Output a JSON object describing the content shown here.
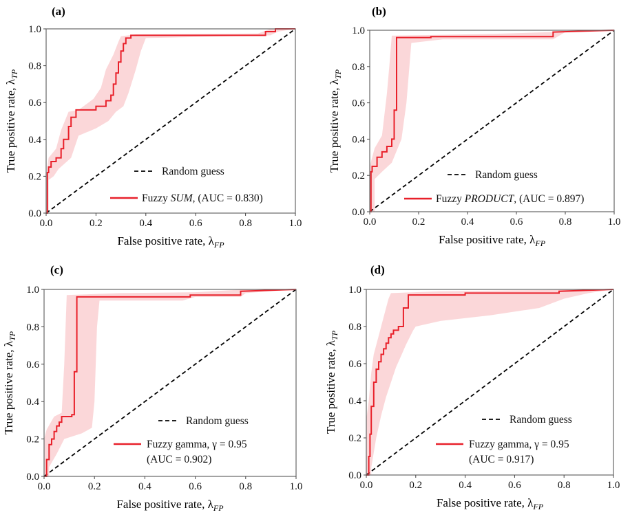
{
  "chart_data": [
    {
      "type": "line",
      "panel_label": "(a)",
      "xlim": [
        0,
        1
      ],
      "ylim": [
        0,
        1
      ],
      "xticks": [
        "0.0",
        "0.2",
        "0.4",
        "0.6",
        "0.8",
        "1.0"
      ],
      "yticks": [
        "0.0",
        "0.2",
        "0.4",
        "0.6",
        "0.8",
        "1.0"
      ],
      "xlabel": {
        "main": "False positive rate, λ",
        "sub": "FP"
      },
      "ylabel": {
        "main": "True positive rate, λ",
        "sub": "TP"
      },
      "legend_position": "lower-right",
      "series": [
        {
          "name": "Random guess",
          "style": "dashed",
          "color": "#000000",
          "x": [
            0,
            1
          ],
          "y": [
            0,
            1
          ]
        },
        {
          "name_parts": [
            "Fuzzy ",
            "SUM",
            ", (AUC = 0.830)"
          ],
          "style": "solid",
          "color": "#e8202a",
          "x": [
            0,
            0.005,
            0.005,
            0.01,
            0.01,
            0.02,
            0.02,
            0.04,
            0.04,
            0.06,
            0.06,
            0.07,
            0.07,
            0.09,
            0.09,
            0.1,
            0.1,
            0.12,
            0.12,
            0.2,
            0.2,
            0.24,
            0.24,
            0.26,
            0.26,
            0.27,
            0.27,
            0.28,
            0.28,
            0.29,
            0.29,
            0.3,
            0.3,
            0.31,
            0.31,
            0.32,
            0.32,
            0.34,
            0.34,
            0.88,
            0.88,
            0.92,
            0.92,
            1.0
          ],
          "y": [
            0,
            0,
            0.22,
            0.22,
            0.25,
            0.25,
            0.28,
            0.28,
            0.3,
            0.3,
            0.35,
            0.35,
            0.4,
            0.4,
            0.47,
            0.47,
            0.52,
            0.52,
            0.56,
            0.56,
            0.58,
            0.58,
            0.61,
            0.61,
            0.64,
            0.64,
            0.7,
            0.7,
            0.76,
            0.76,
            0.82,
            0.82,
            0.88,
            0.88,
            0.92,
            0.92,
            0.95,
            0.95,
            0.965,
            0.965,
            0.985,
            0.985,
            1.0,
            1.0
          ],
          "band_lower": [
            [
              0,
              0
            ],
            [
              0.01,
              0.0
            ],
            [
              0.01,
              0.18
            ],
            [
              0.03,
              0.2
            ],
            [
              0.05,
              0.24
            ],
            [
              0.1,
              0.3
            ],
            [
              0.13,
              0.42
            ],
            [
              0.2,
              0.46
            ],
            [
              0.25,
              0.5
            ],
            [
              0.28,
              0.55
            ],
            [
              0.31,
              0.58
            ],
            [
              0.33,
              0.65
            ],
            [
              0.36,
              0.78
            ],
            [
              0.38,
              0.88
            ],
            [
              0.4,
              0.95
            ],
            [
              0.9,
              0.965
            ],
            [
              0.93,
              0.985
            ],
            [
              1,
              1
            ]
          ],
          "band_upper": [
            [
              0,
              0.2
            ],
            [
              0.01,
              0.3
            ],
            [
              0.04,
              0.35
            ],
            [
              0.06,
              0.45
            ],
            [
              0.09,
              0.55
            ],
            [
              0.13,
              0.56
            ],
            [
              0.19,
              0.62
            ],
            [
              0.22,
              0.68
            ],
            [
              0.24,
              0.78
            ],
            [
              0.27,
              0.86
            ],
            [
              0.29,
              0.93
            ],
            [
              0.3,
              0.96
            ],
            [
              0.36,
              0.97
            ],
            [
              0.85,
              0.975
            ],
            [
              0.9,
              1.0
            ],
            [
              1,
              1
            ]
          ]
        }
      ]
    },
    {
      "type": "line",
      "panel_label": "(b)",
      "xlim": [
        0,
        1
      ],
      "ylim": [
        0,
        1
      ],
      "xticks": [
        "0.0",
        "0.2",
        "0.4",
        "0.6",
        "0.8",
        "1.0"
      ],
      "yticks": [
        "0.0",
        "0.2",
        "0.4",
        "0.6",
        "0.8",
        "1.0"
      ],
      "xlabel": {
        "main": "False positive rate, λ",
        "sub": "FP"
      },
      "ylabel": {
        "main": "True positive rate, λ",
        "sub": "TP"
      },
      "legend_position": "lower-right",
      "series": [
        {
          "name": "Random guess",
          "style": "dashed",
          "color": "#000000",
          "x": [
            0,
            1
          ],
          "y": [
            0,
            1
          ]
        },
        {
          "name_parts": [
            "Fuzzy ",
            "PRODUCT",
            ", (AUC = 0.897)"
          ],
          "style": "solid",
          "color": "#e8202a",
          "x": [
            0,
            0.005,
            0.005,
            0.01,
            0.01,
            0.03,
            0.03,
            0.05,
            0.05,
            0.07,
            0.07,
            0.09,
            0.09,
            0.1,
            0.1,
            0.11,
            0.11,
            0.25,
            0.25,
            0.75,
            0.75,
            1.0
          ],
          "y": [
            0,
            0,
            0.22,
            0.22,
            0.25,
            0.25,
            0.3,
            0.3,
            0.33,
            0.33,
            0.36,
            0.36,
            0.4,
            0.4,
            0.56,
            0.56,
            0.96,
            0.96,
            0.965,
            0.965,
            0.99,
            1.0
          ],
          "band_lower": [
            [
              0,
              0
            ],
            [
              0.02,
              0.0
            ],
            [
              0.02,
              0.18
            ],
            [
              0.05,
              0.22
            ],
            [
              0.09,
              0.27
            ],
            [
              0.13,
              0.4
            ],
            [
              0.15,
              0.6
            ],
            [
              0.17,
              0.93
            ],
            [
              0.3,
              0.95
            ],
            [
              0.75,
              0.95
            ],
            [
              0.8,
              0.99
            ],
            [
              1,
              1
            ]
          ],
          "band_upper": [
            [
              0,
              0.25
            ],
            [
              0.02,
              0.35
            ],
            [
              0.05,
              0.42
            ],
            [
              0.07,
              0.65
            ],
            [
              0.08,
              0.8
            ],
            [
              0.09,
              0.97
            ],
            [
              0.5,
              0.98
            ],
            [
              0.75,
              0.99
            ],
            [
              1,
              1
            ]
          ]
        }
      ]
    },
    {
      "type": "line",
      "panel_label": "(c)",
      "xlim": [
        0,
        1
      ],
      "ylim": [
        0,
        1
      ],
      "xticks": [
        "0.0",
        "0.2",
        "0.4",
        "0.6",
        "0.8",
        "1.0"
      ],
      "yticks": [
        "0.0",
        "0.2",
        "0.4",
        "0.6",
        "0.8",
        "1.0"
      ],
      "xlabel": {
        "main": "False positive rate, λ",
        "sub": "FP"
      },
      "ylabel": {
        "main": "True positive rate, λ",
        "sub": "TP"
      },
      "legend_position": "lower-right",
      "series": [
        {
          "name": "Random guess",
          "style": "dashed",
          "color": "#000000",
          "x": [
            0,
            1
          ],
          "y": [
            0,
            1
          ]
        },
        {
          "name_parts": [
            "Fuzzy gamma, γ = 0.95",
            "",
            "(AUC = 0.902)"
          ],
          "style": "solid",
          "color": "#e8202a",
          "x": [
            0,
            0.01,
            0.01,
            0.02,
            0.02,
            0.03,
            0.03,
            0.04,
            0.04,
            0.05,
            0.05,
            0.06,
            0.06,
            0.07,
            0.07,
            0.11,
            0.11,
            0.12,
            0.12,
            0.13,
            0.13,
            0.58,
            0.58,
            0.78,
            0.78,
            1.0
          ],
          "y": [
            0,
            0,
            0.09,
            0.09,
            0.17,
            0.17,
            0.2,
            0.2,
            0.24,
            0.24,
            0.27,
            0.27,
            0.29,
            0.29,
            0.32,
            0.32,
            0.33,
            0.33,
            0.56,
            0.56,
            0.96,
            0.96,
            0.97,
            0.97,
            0.99,
            1.0
          ],
          "band_lower": [
            [
              0,
              0
            ],
            [
              0.02,
              0.0
            ],
            [
              0.02,
              0.05
            ],
            [
              0.05,
              0.12
            ],
            [
              0.08,
              0.2
            ],
            [
              0.15,
              0.23
            ],
            [
              0.19,
              0.26
            ],
            [
              0.2,
              0.4
            ],
            [
              0.21,
              0.8
            ],
            [
              0.22,
              0.94
            ],
            [
              0.55,
              0.94
            ],
            [
              0.6,
              0.96
            ],
            [
              0.78,
              0.96
            ],
            [
              0.8,
              0.98
            ],
            [
              1,
              1
            ]
          ],
          "band_upper": [
            [
              0,
              0.2
            ],
            [
              0.01,
              0.25
            ],
            [
              0.04,
              0.32
            ],
            [
              0.07,
              0.34
            ],
            [
              0.08,
              0.6
            ],
            [
              0.09,
              0.97
            ],
            [
              0.3,
              0.98
            ],
            [
              0.6,
              0.985
            ],
            [
              0.8,
              1.0
            ],
            [
              1,
              1
            ]
          ]
        }
      ]
    },
    {
      "type": "line",
      "panel_label": "(d)",
      "xlim": [
        0,
        1
      ],
      "ylim": [
        0,
        1
      ],
      "xticks": [
        "0.0",
        "0.2",
        "0.4",
        "0.6",
        "0.8",
        "1.0"
      ],
      "yticks": [
        "0.0",
        "0.2",
        "0.4",
        "0.6",
        "0.8",
        "1.0"
      ],
      "xlabel": {
        "main": "False positive rate, λ",
        "sub": "FP"
      },
      "ylabel": {
        "main": "True positive rate, λ",
        "sub": "TP"
      },
      "legend_position": "lower-right",
      "series": [
        {
          "name": "Random guess",
          "style": "dashed",
          "color": "#000000",
          "x": [
            0,
            1
          ],
          "y": [
            0,
            1
          ]
        },
        {
          "name_parts": [
            "Fuzzy gamma, γ = 0.95",
            "",
            "(AUC = 0.917)"
          ],
          "style": "solid",
          "color": "#e8202a",
          "x": [
            0,
            0.01,
            0.01,
            0.015,
            0.015,
            0.02,
            0.02,
            0.03,
            0.03,
            0.04,
            0.04,
            0.05,
            0.05,
            0.06,
            0.06,
            0.07,
            0.07,
            0.08,
            0.08,
            0.09,
            0.09,
            0.1,
            0.1,
            0.11,
            0.11,
            0.13,
            0.13,
            0.15,
            0.15,
            0.17,
            0.17,
            0.4,
            0.4,
            0.78,
            0.78,
            1.0
          ],
          "y": [
            0,
            0,
            0.1,
            0.1,
            0.22,
            0.22,
            0.37,
            0.37,
            0.5,
            0.5,
            0.57,
            0.57,
            0.61,
            0.61,
            0.65,
            0.65,
            0.68,
            0.68,
            0.71,
            0.71,
            0.74,
            0.74,
            0.76,
            0.76,
            0.78,
            0.78,
            0.8,
            0.8,
            0.9,
            0.9,
            0.97,
            0.97,
            0.98,
            0.98,
            0.99,
            1.0
          ],
          "band_lower": [
            [
              0,
              0
            ],
            [
              0.02,
              0.0
            ],
            [
              0.02,
              0.04
            ],
            [
              0.04,
              0.2
            ],
            [
              0.06,
              0.32
            ],
            [
              0.08,
              0.42
            ],
            [
              0.1,
              0.5
            ],
            [
              0.12,
              0.58
            ],
            [
              0.14,
              0.64
            ],
            [
              0.16,
              0.7
            ],
            [
              0.19,
              0.78
            ],
            [
              0.2,
              0.8
            ],
            [
              0.3,
              0.83
            ],
            [
              0.5,
              0.86
            ],
            [
              0.7,
              0.9
            ],
            [
              0.8,
              0.95
            ],
            [
              0.9,
              0.98
            ],
            [
              1,
              1
            ]
          ],
          "band_upper": [
            [
              0,
              0.3
            ],
            [
              0.01,
              0.4
            ],
            [
              0.02,
              0.55
            ],
            [
              0.03,
              0.65
            ],
            [
              0.05,
              0.75
            ],
            [
              0.07,
              0.85
            ],
            [
              0.09,
              0.95
            ],
            [
              0.1,
              0.98
            ],
            [
              0.3,
              0.99
            ],
            [
              0.6,
              0.995
            ],
            [
              1,
              1
            ]
          ]
        }
      ]
    }
  ]
}
